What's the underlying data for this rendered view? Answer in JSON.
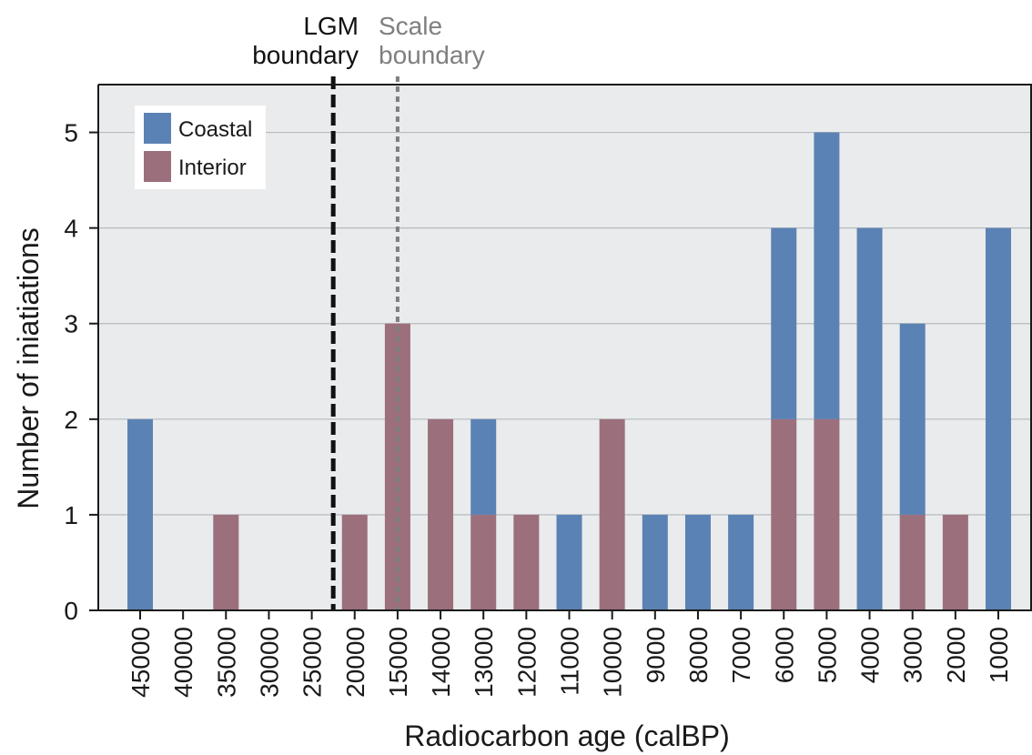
{
  "chart_data": {
    "type": "bar",
    "stacked": true,
    "categories": [
      "45000",
      "40000",
      "35000",
      "30000",
      "25000",
      "20000",
      "15000",
      "14000",
      "13000",
      "12000",
      "11000",
      "10000",
      "9000",
      "8000",
      "7000",
      "6000",
      "5000",
      "4000",
      "3000",
      "2000",
      "1000"
    ],
    "series": [
      {
        "name": "Coastal",
        "color": "#5b82b4",
        "values": [
          2,
          0,
          0,
          0,
          0,
          0,
          0,
          0,
          1,
          0,
          1,
          0,
          1,
          1,
          1,
          2,
          3,
          4,
          2,
          0,
          4
        ]
      },
      {
        "name": "Interior",
        "color": "#9c6f7d",
        "values": [
          0,
          0,
          1,
          0,
          0,
          1,
          3,
          2,
          1,
          1,
          0,
          2,
          0,
          0,
          0,
          2,
          2,
          0,
          1,
          1,
          0
        ]
      }
    ],
    "stack_order": [
      "Interior",
      "Coastal"
    ],
    "xlabel": "Radiocarbon age (calBP)",
    "ylabel": "Number of iniatiations",
    "ylim": [
      0,
      5.5
    ],
    "yticks": [
      0,
      1,
      2,
      3,
      4,
      5
    ],
    "grid": "horizontal",
    "background": "#e9ebec",
    "legend_position": "top-left",
    "annotations": [
      {
        "line1": "LGM",
        "line2": "boundary",
        "style": "dashed",
        "color": "#111111",
        "between_categories": [
          "25000",
          "20000"
        ]
      },
      {
        "line1": "Scale",
        "line2": "boundary",
        "style": "dotted",
        "color": "#7f7f7f",
        "at_category": "15000"
      }
    ]
  }
}
